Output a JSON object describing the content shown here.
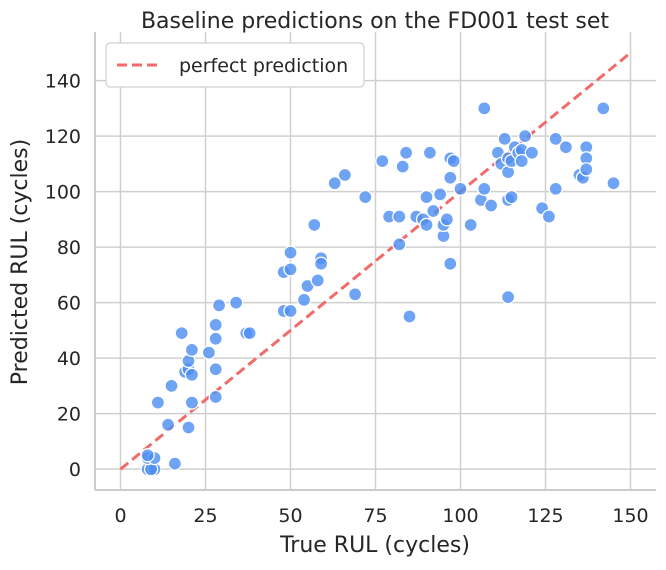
{
  "chart_data": {
    "type": "scatter",
    "title": "Baseline predictions on the FD001 test set",
    "xlabel": "True RUL (cycles)",
    "ylabel": "Predicted RUL (cycles)",
    "xlim": [
      -7.5,
      157.5
    ],
    "ylim": [
      -7.5,
      157.5
    ],
    "xticks": [
      0,
      25,
      50,
      75,
      100,
      125,
      150
    ],
    "yticks": [
      0,
      20,
      40,
      60,
      80,
      100,
      120,
      140
    ],
    "grid": true,
    "legend": {
      "position": "top-left",
      "entries": [
        "perfect prediction"
      ]
    },
    "colors": {
      "points": "#4f8ff0",
      "line": "#f26b6b",
      "grid": "#cfcfcf",
      "axes": "#cccccc"
    },
    "reference_line": {
      "name": "perfect prediction",
      "x": [
        0,
        150
      ],
      "y": [
        0,
        150
      ],
      "style": "dashed"
    },
    "series": [
      {
        "points": [
          [
            8,
            0
          ],
          [
            9,
            0
          ],
          [
            10,
            0
          ],
          [
            9,
            0
          ],
          [
            8,
            4
          ],
          [
            10,
            4
          ],
          [
            8,
            5
          ],
          [
            16,
            2
          ],
          [
            11,
            24
          ],
          [
            14,
            16
          ],
          [
            15,
            30
          ],
          [
            18,
            49
          ],
          [
            19,
            35
          ],
          [
            20,
            36
          ],
          [
            20,
            39
          ],
          [
            21,
            43
          ],
          [
            21,
            34
          ],
          [
            21,
            24
          ],
          [
            20,
            15
          ],
          [
            26,
            42
          ],
          [
            28,
            47
          ],
          [
            28,
            52
          ],
          [
            29,
            59
          ],
          [
            28,
            36
          ],
          [
            28,
            26
          ],
          [
            34,
            60
          ],
          [
            37,
            49
          ],
          [
            38,
            49
          ],
          [
            48,
            57
          ],
          [
            48,
            71
          ],
          [
            50,
            72
          ],
          [
            50,
            78
          ],
          [
            50,
            57
          ],
          [
            54,
            61
          ],
          [
            55,
            66
          ],
          [
            57,
            88
          ],
          [
            58,
            68
          ],
          [
            59,
            76
          ],
          [
            59,
            74
          ],
          [
            63,
            103
          ],
          [
            66,
            106
          ],
          [
            69,
            63
          ],
          [
            72,
            98
          ],
          [
            77,
            111
          ],
          [
            79,
            91
          ],
          [
            82,
            91
          ],
          [
            82,
            81
          ],
          [
            83,
            109
          ],
          [
            84,
            114
          ],
          [
            85,
            55
          ],
          [
            87,
            91
          ],
          [
            89,
            90
          ],
          [
            90,
            98
          ],
          [
            91,
            114
          ],
          [
            90,
            88
          ],
          [
            92,
            93
          ],
          [
            94,
            99
          ],
          [
            95,
            84
          ],
          [
            95,
            88
          ],
          [
            96,
            90
          ],
          [
            97,
            105
          ],
          [
            97,
            112
          ],
          [
            97,
            74
          ],
          [
            98,
            111
          ],
          [
            100,
            101
          ],
          [
            103,
            88
          ],
          [
            106,
            97
          ],
          [
            107,
            130
          ],
          [
            107,
            101
          ],
          [
            109,
            95
          ],
          [
            111,
            114
          ],
          [
            112,
            110
          ],
          [
            113,
            119
          ],
          [
            114,
            112
          ],
          [
            114,
            107
          ],
          [
            114,
            97
          ],
          [
            114,
            62
          ],
          [
            115,
            111
          ],
          [
            115,
            98
          ],
          [
            116,
            116
          ],
          [
            117,
            114
          ],
          [
            118,
            115
          ],
          [
            118,
            111
          ],
          [
            119,
            120
          ],
          [
            121,
            114
          ],
          [
            124,
            94
          ],
          [
            126,
            91
          ],
          [
            128,
            101
          ],
          [
            128,
            119
          ],
          [
            131,
            116
          ],
          [
            135,
            106
          ],
          [
            136,
            105
          ],
          [
            137,
            116
          ],
          [
            137,
            112
          ],
          [
            137,
            108
          ],
          [
            142,
            130
          ],
          [
            145,
            103
          ]
        ]
      }
    ]
  }
}
